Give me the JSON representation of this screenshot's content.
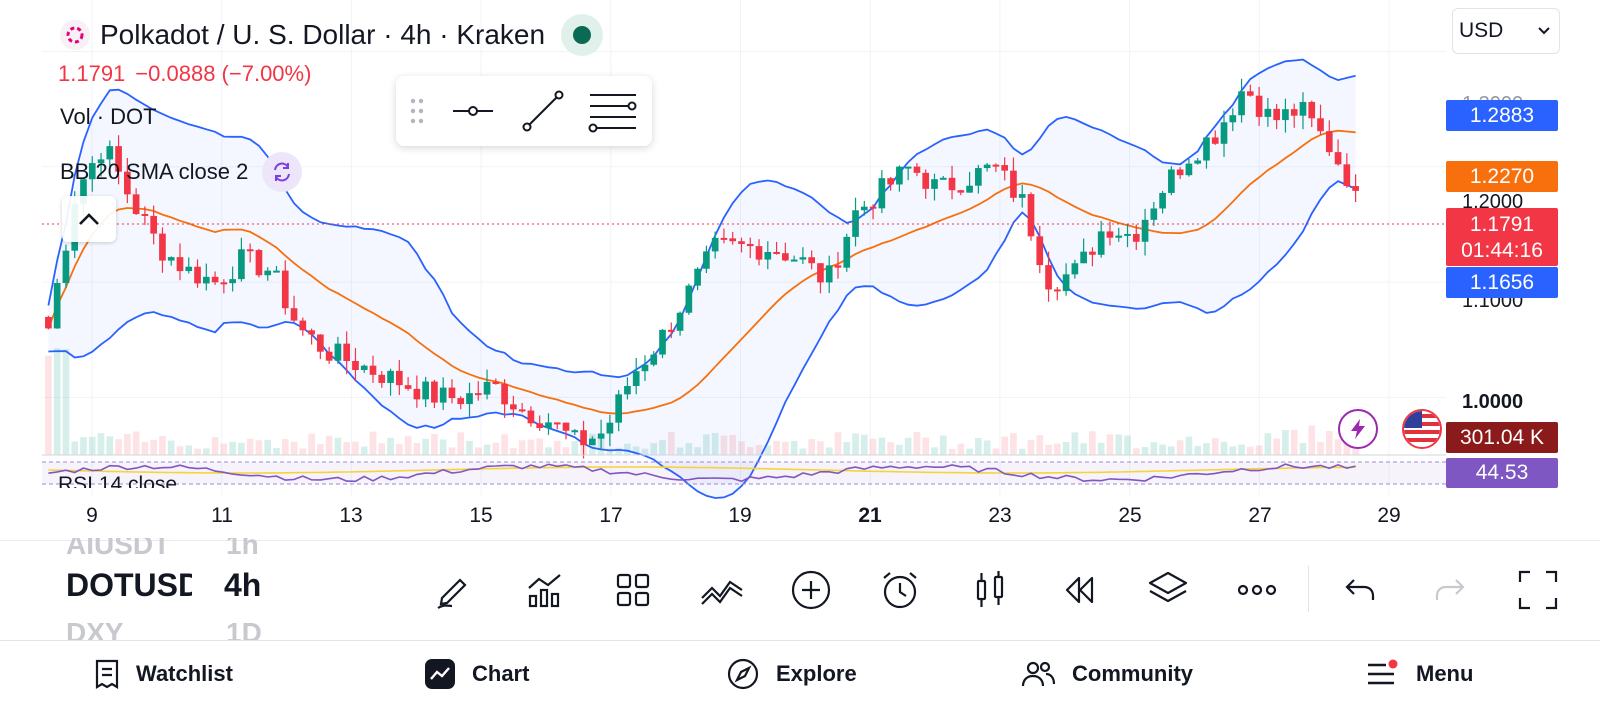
{
  "header": {
    "title": "Polkadot / U. S. Dollar · 4h · Kraken",
    "price": "1.1791",
    "change": "−0.0888 (−7.00%)",
    "currency": "USD"
  },
  "indicators": {
    "volume": "Vol · DOT",
    "bollinger": "BB 20 SMA close 2",
    "rsi": "RSI 14 close"
  },
  "drawing_toolbar": {
    "tools": [
      "horizontal-ray-icon",
      "trend-line-icon",
      "fib-retracement-icon"
    ]
  },
  "price_axis": {
    "ticks": [
      "1.3000",
      "1.2000",
      "1.1000",
      "1.0000"
    ],
    "tags": {
      "bb_upper": "1.2883",
      "bb_basis": "1.2270",
      "last_price": "1.1791",
      "countdown": "01:44:16",
      "bb_lower": "1.1656",
      "volume": "301.04 K",
      "rsi": "44.53"
    }
  },
  "colors": {
    "up": "#089981",
    "down": "#f23645",
    "bb_band": "#2962ff",
    "bb_basis": "#f7700d",
    "rsi": "#7e57c2",
    "volume_tag": "#8b1a1a"
  },
  "time_axis": {
    "ticks": [
      "9",
      "11",
      "13",
      "15",
      "17",
      "19",
      "21",
      "23",
      "25",
      "27",
      "29"
    ],
    "bold": "21"
  },
  "chart_data": {
    "type": "candlestick",
    "interval": "4h",
    "ylim": [
      0.95,
      1.31
    ],
    "x_dates": [
      "9",
      "11",
      "13",
      "15",
      "17",
      "19",
      "21",
      "23",
      "25",
      "27",
      "29"
    ],
    "ohlc_close_path": [
      1.06,
      1.18,
      1.22,
      1.17,
      1.13,
      1.11,
      1.1,
      1.12,
      1.11,
      1.06,
      1.04,
      1.03,
      1.02,
      1.01,
      1.0,
      1.0,
      1.01,
      0.99,
      0.98,
      0.96,
      0.97,
      1.02,
      1.05,
      1.09,
      1.13,
      1.13,
      1.13,
      1.12,
      1.1,
      1.16,
      1.18,
      1.2,
      1.18,
      1.19,
      1.2,
      1.17,
      1.1,
      1.11,
      1.15,
      1.14,
      1.18,
      1.21,
      1.23,
      1.27,
      1.24,
      1.25,
      1.22,
      1.18
    ],
    "last": 1.1791,
    "bb_upper_last": 1.2883,
    "bb_basis_last": 1.227,
    "bb_lower_last": 1.1656,
    "volume_last": "301.04 K",
    "rsi_last": 44.53
  },
  "symbol_picker": {
    "prev_symbol": "AIUSDT",
    "prev_tf": "1h",
    "symbol": "DOTUSD",
    "timeframe": "4h",
    "next_symbol": "DXY",
    "next_tf": "1D"
  },
  "toolbar_icons": [
    "pencil-icon",
    "indicators-icon",
    "layouts-icon",
    "compare-icon",
    "add-icon",
    "alert-icon",
    "chart-type-icon",
    "replay-icon",
    "layers-icon",
    "more-icon",
    "undo-icon",
    "redo-icon",
    "fullscreen-icon"
  ],
  "tabs": [
    {
      "label": "Watchlist",
      "icon": "watchlist-icon"
    },
    {
      "label": "Chart",
      "icon": "chart-icon"
    },
    {
      "label": "Explore",
      "icon": "compass-icon"
    },
    {
      "label": "Community",
      "icon": "community-icon"
    },
    {
      "label": "Menu",
      "icon": "menu-icon"
    }
  ]
}
